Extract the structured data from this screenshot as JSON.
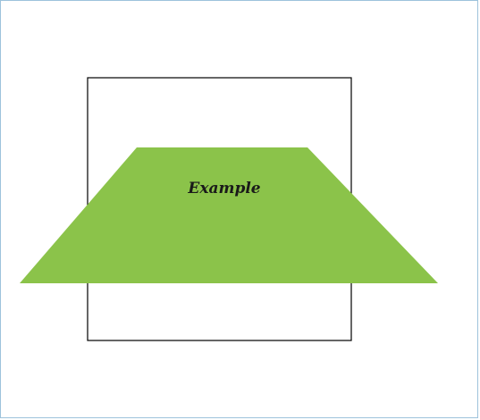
{
  "diagram": {
    "shape_label": "Example",
    "colors": {
      "frame_border": "#9dc3dc",
      "square_stroke": "#000000",
      "trapezoid_fill": "#8bc34a",
      "label_text": "#1a1a1a"
    }
  }
}
